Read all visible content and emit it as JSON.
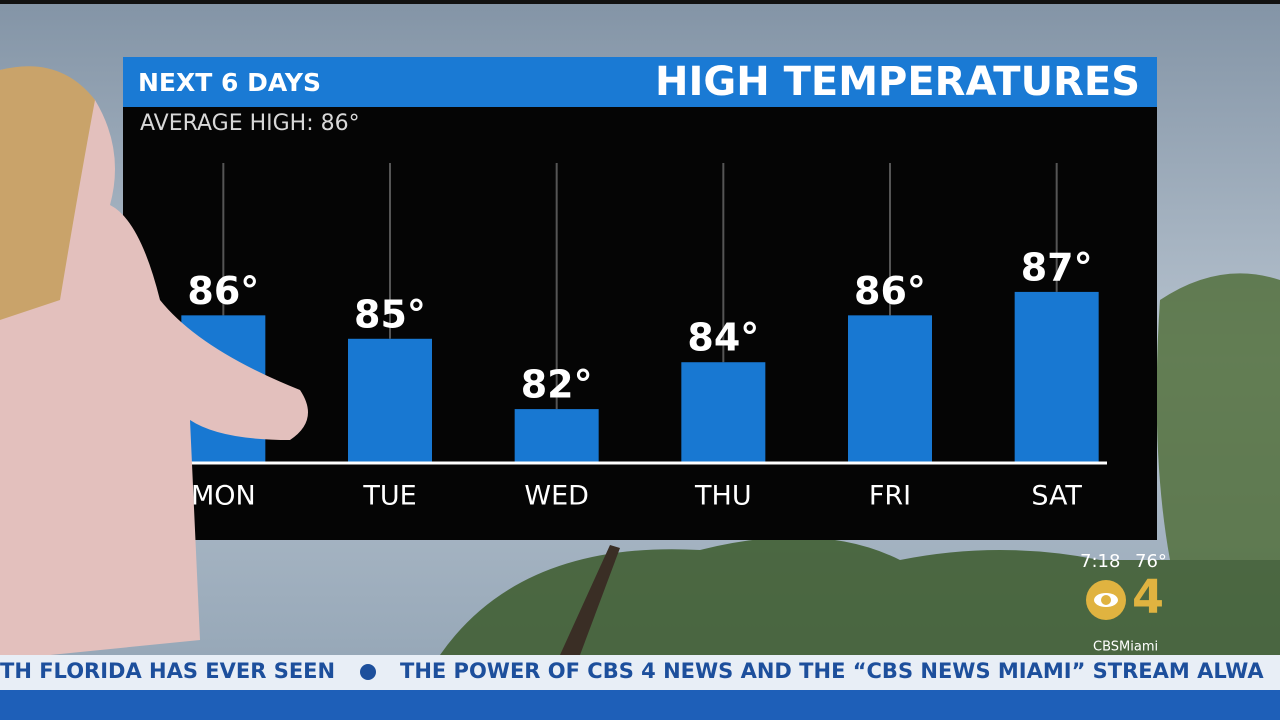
{
  "chart_data": {
    "type": "bar",
    "title": "HIGH TEMPERATURES",
    "subtitle": "NEXT 6 DAYS",
    "annotation": "AVERAGE HIGH:  86°",
    "categories": [
      "MON",
      "TUE",
      "WED",
      "THU",
      "FRI",
      "SAT"
    ],
    "values": [
      86,
      85,
      82,
      84,
      86,
      87
    ],
    "value_labels": [
      "86°",
      "85°",
      "82°",
      "84°",
      "86°",
      "87°"
    ],
    "color": "#1878d2",
    "ylim": [
      79.7,
      92.5
    ]
  },
  "overlay": {
    "clock": "7:18",
    "current_temp": "76°",
    "logo": "4",
    "social": "CBSMiami",
    "ticker": [
      "TH FLORIDA HAS EVER SEEN",
      "THE POWER OF CBS 4 NEWS AND THE “CBS NEWS MIAMI” STREAM ALWA"
    ]
  }
}
